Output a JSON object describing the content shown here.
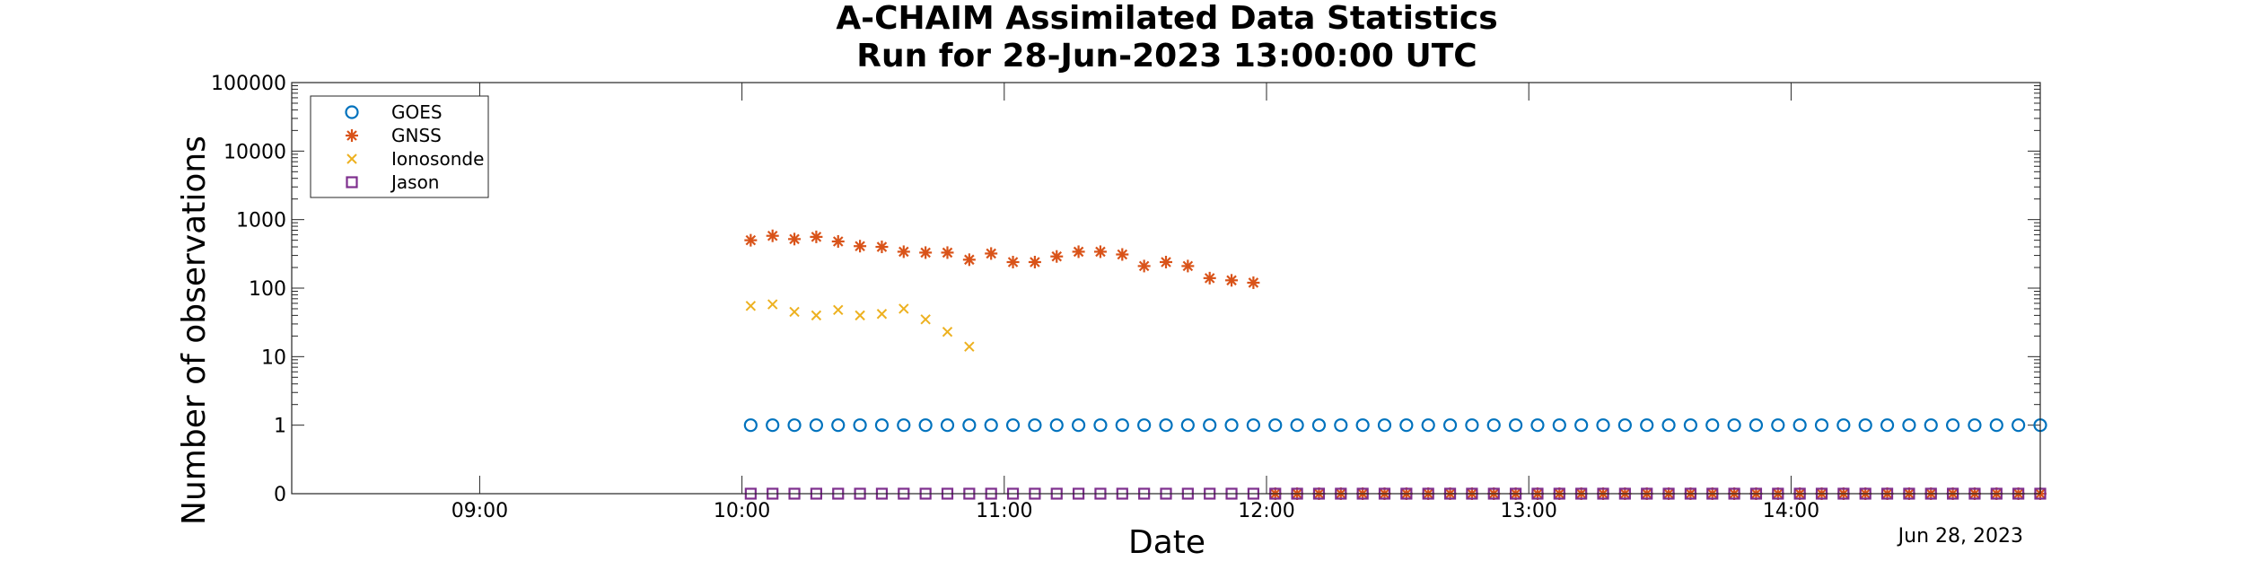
{
  "chart_data": {
    "type": "scatter",
    "title": [
      "A-CHAIM Assimilated Data Statistics",
      "Run for 28-Jun-2023 13:00:00 UTC"
    ],
    "xlabel": "Date",
    "ylabel": "Number of observations",
    "x_date_note": "Jun 28, 2023",
    "x_scale": "time (hours, 28-Jun-2023)",
    "xlim": [
      "08:17",
      "14:57"
    ],
    "x_ticks": [
      "09:00",
      "10:00",
      "11:00",
      "12:00",
      "13:00",
      "14:00"
    ],
    "y_scale": "log",
    "ylim": [
      0,
      100000
    ],
    "y_ticks": [
      "0",
      "1",
      "10",
      "100",
      "1000",
      "10000",
      "100000"
    ],
    "grid": false,
    "legend_position": "top-left",
    "series": [
      {
        "name": "GOES",
        "marker": "circle",
        "color": "#0072BD",
        "x": [
          "10:02",
          "10:07",
          "10:12",
          "10:17",
          "10:22",
          "10:27",
          "10:32",
          "10:37",
          "10:42",
          "10:47",
          "10:52",
          "10:57",
          "11:02",
          "11:07",
          "11:12",
          "11:17",
          "11:22",
          "11:27",
          "11:32",
          "11:37",
          "11:42",
          "11:47",
          "11:52",
          "11:57",
          "12:02",
          "12:07",
          "12:12",
          "12:17",
          "12:22",
          "12:27",
          "12:32",
          "12:37",
          "12:42",
          "12:47",
          "12:52",
          "12:57",
          "13:02",
          "13:07",
          "13:12",
          "13:17",
          "13:22",
          "13:27",
          "13:32",
          "13:37",
          "13:42",
          "13:47",
          "13:52",
          "13:57",
          "14:02",
          "14:07",
          "14:12",
          "14:17",
          "14:22",
          "14:27",
          "14:32",
          "14:37",
          "14:42",
          "14:47",
          "14:52",
          "14:57"
        ],
        "y": [
          1,
          1,
          1,
          1,
          1,
          1,
          1,
          1,
          1,
          1,
          1,
          1,
          1,
          1,
          1,
          1,
          1,
          1,
          1,
          1,
          1,
          1,
          1,
          1,
          1,
          1,
          1,
          1,
          1,
          1,
          1,
          1,
          1,
          1,
          1,
          1,
          1,
          1,
          1,
          1,
          1,
          1,
          1,
          1,
          1,
          1,
          1,
          1,
          1,
          1,
          1,
          1,
          1,
          1,
          1,
          1,
          1,
          1,
          1,
          1
        ]
      },
      {
        "name": "GNSS",
        "marker": "asterisk",
        "color": "#D95319",
        "x": [
          "10:02",
          "10:07",
          "10:12",
          "10:17",
          "10:22",
          "10:27",
          "10:32",
          "10:37",
          "10:42",
          "10:47",
          "10:52",
          "10:57",
          "11:02",
          "11:07",
          "11:12",
          "11:17",
          "11:22",
          "11:27",
          "11:32",
          "11:37",
          "11:42",
          "11:47",
          "11:52",
          "11:57",
          "12:02",
          "12:07",
          "12:12",
          "12:17",
          "12:22",
          "12:27",
          "12:32",
          "12:37",
          "12:42",
          "12:47",
          "12:52",
          "12:57",
          "13:02",
          "13:07",
          "13:12",
          "13:17",
          "13:22",
          "13:27",
          "13:32",
          "13:37",
          "13:42",
          "13:47",
          "13:52",
          "13:57",
          "14:02",
          "14:07",
          "14:12",
          "14:17",
          "14:22",
          "14:27",
          "14:32",
          "14:37",
          "14:42",
          "14:47",
          "14:52",
          "14:57"
        ],
        "y": [
          500,
          580,
          520,
          560,
          480,
          410,
          400,
          340,
          330,
          330,
          260,
          320,
          240,
          240,
          290,
          340,
          340,
          310,
          210,
          240,
          210,
          140,
          130,
          120,
          0,
          0,
          0,
          0,
          0,
          0,
          0,
          0,
          0,
          0,
          0,
          0,
          0,
          0,
          0,
          0,
          0,
          0,
          0,
          0,
          0,
          0,
          0,
          0,
          0,
          0,
          0,
          0,
          0,
          0,
          0,
          0,
          0,
          0,
          0,
          0
        ]
      },
      {
        "name": "Ionosonde",
        "marker": "x",
        "color": "#EDB120",
        "x": [
          "10:02",
          "10:07",
          "10:12",
          "10:17",
          "10:22",
          "10:27",
          "10:32",
          "10:37",
          "10:42",
          "10:47",
          "10:52"
        ],
        "y": [
          55,
          58,
          45,
          40,
          48,
          40,
          42,
          50,
          35,
          23,
          14
        ]
      },
      {
        "name": "Jason",
        "marker": "square",
        "color": "#7E2F8E",
        "x": [
          "10:02",
          "10:07",
          "10:12",
          "10:17",
          "10:22",
          "10:27",
          "10:32",
          "10:37",
          "10:42",
          "10:47",
          "10:52",
          "10:57",
          "11:02",
          "11:07",
          "11:12",
          "11:17",
          "11:22",
          "11:27",
          "11:32",
          "11:37",
          "11:42",
          "11:47",
          "11:52",
          "11:57",
          "12:02",
          "12:07",
          "12:12",
          "12:17",
          "12:22",
          "12:27",
          "12:32",
          "12:37",
          "12:42",
          "12:47",
          "12:52",
          "12:57",
          "13:02",
          "13:07",
          "13:12",
          "13:17",
          "13:22",
          "13:27",
          "13:32",
          "13:37",
          "13:42",
          "13:47",
          "13:52",
          "13:57",
          "14:02",
          "14:07",
          "14:12",
          "14:17",
          "14:22",
          "14:27",
          "14:32",
          "14:37",
          "14:42",
          "14:47",
          "14:52",
          "14:57"
        ],
        "y": [
          0,
          0,
          0,
          0,
          0,
          0,
          0,
          0,
          0,
          0,
          0,
          0,
          0,
          0,
          0,
          0,
          0,
          0,
          0,
          0,
          0,
          0,
          0,
          0,
          0,
          0,
          0,
          0,
          0,
          0,
          0,
          0,
          0,
          0,
          0,
          0,
          0,
          0,
          0,
          0,
          0,
          0,
          0,
          0,
          0,
          0,
          0,
          0,
          0,
          0,
          0,
          0,
          0,
          0,
          0,
          0,
          0,
          0,
          0,
          0
        ]
      }
    ]
  }
}
